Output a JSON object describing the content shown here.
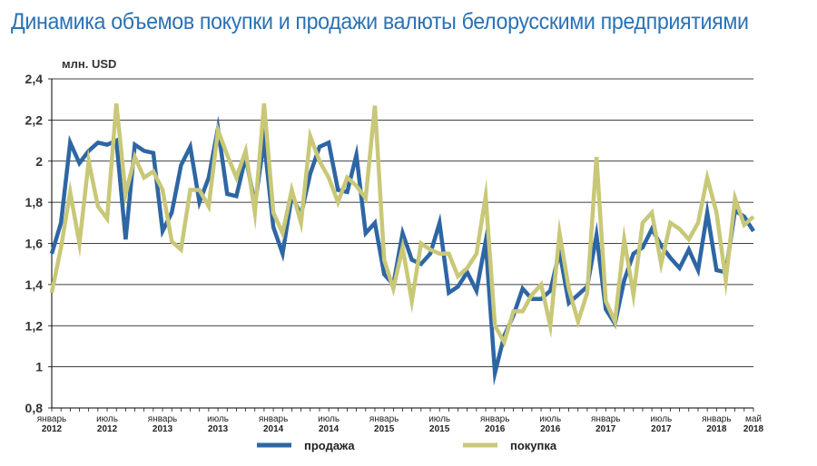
{
  "chart_data": {
    "type": "line",
    "title": "Динамика объемов покупки и продажи валюты белорусскими предприятиями",
    "ylabel": "млн. USD",
    "ylim": [
      0.8,
      2.4
    ],
    "yticks": [
      "0,8",
      "1",
      "1,2",
      "1,4",
      "1,6",
      "1,8",
      "2",
      "2,2",
      "2,4"
    ],
    "ytick_values": [
      0.8,
      1.0,
      1.2,
      1.4,
      1.6,
      1.8,
      2.0,
      2.2,
      2.4
    ],
    "x_start": "2012-01",
    "x_end": "2018-05",
    "grid": "horizontal",
    "legend_position": "bottom",
    "x_labels": [
      {
        "month": "январь",
        "year": "2012",
        "x": "2012-01"
      },
      {
        "month": "июль",
        "year": "2012",
        "x": "2012-07"
      },
      {
        "month": "январь",
        "year": "2013",
        "x": "2013-01"
      },
      {
        "month": "июль",
        "year": "2013",
        "x": "2013-07"
      },
      {
        "month": "январь",
        "year": "2014",
        "x": "2014-01"
      },
      {
        "month": "июль",
        "year": "2014",
        "x": "2014-07"
      },
      {
        "month": "январь",
        "year": "2015",
        "x": "2015-01"
      },
      {
        "month": "июль",
        "year": "2015",
        "x": "2015-07"
      },
      {
        "month": "январь",
        "year": "2016",
        "x": "2016-01"
      },
      {
        "month": "июль",
        "year": "2016",
        "x": "2016-07"
      },
      {
        "month": "январь",
        "year": "2017",
        "x": "2017-01"
      },
      {
        "month": "июль",
        "year": "2017",
        "x": "2017-07"
      },
      {
        "month": "январь",
        "year": "2018",
        "x": "2018-01"
      },
      {
        "month": "май",
        "year": "2018",
        "x": "2018-05"
      }
    ],
    "series": [
      {
        "name": "продажа",
        "color": "#2e66a4",
        "values": [
          1.55,
          1.7,
          2.09,
          1.99,
          2.05,
          2.09,
          2.08,
          2.1,
          1.62,
          2.08,
          2.05,
          2.04,
          1.66,
          1.75,
          1.98,
          2.07,
          1.8,
          1.92,
          2.16,
          1.84,
          1.83,
          2.02,
          1.79,
          2.1,
          1.68,
          1.55,
          1.83,
          1.74,
          1.94,
          2.07,
          2.09,
          1.86,
          1.85,
          2.03,
          1.65,
          1.7,
          1.45,
          1.4,
          1.65,
          1.52,
          1.5,
          1.55,
          1.7,
          1.36,
          1.39,
          1.46,
          1.37,
          1.61,
          0.97,
          1.15,
          1.25,
          1.38,
          1.33,
          1.33,
          1.37,
          1.56,
          1.31,
          1.35,
          1.39,
          1.64,
          1.28,
          1.21,
          1.42,
          1.55,
          1.58,
          1.67,
          1.59,
          1.53,
          1.48,
          1.57,
          1.47,
          1.75,
          1.47,
          1.46,
          1.76,
          1.73,
          1.66
        ]
      },
      {
        "name": "покупка",
        "color": "#c8c878",
        "values": [
          1.36,
          1.58,
          1.85,
          1.6,
          2.0,
          1.78,
          1.72,
          2.28,
          1.84,
          2.02,
          1.92,
          1.95,
          1.86,
          1.61,
          1.57,
          1.86,
          1.86,
          1.78,
          2.15,
          2.03,
          1.92,
          2.05,
          1.75,
          2.28,
          1.75,
          1.65,
          1.86,
          1.7,
          2.12,
          2.0,
          1.92,
          1.8,
          1.92,
          1.88,
          1.82,
          2.27,
          1.52,
          1.38,
          1.58,
          1.32,
          1.6,
          1.57,
          1.55,
          1.55,
          1.44,
          1.48,
          1.55,
          1.83,
          1.2,
          1.12,
          1.27,
          1.27,
          1.35,
          1.4,
          1.2,
          1.65,
          1.38,
          1.22,
          1.36,
          2.02,
          1.32,
          1.22,
          1.62,
          1.35,
          1.7,
          1.75,
          1.5,
          1.7,
          1.67,
          1.62,
          1.7,
          1.92,
          1.75,
          1.42,
          1.82,
          1.69,
          1.73
        ]
      }
    ]
  }
}
